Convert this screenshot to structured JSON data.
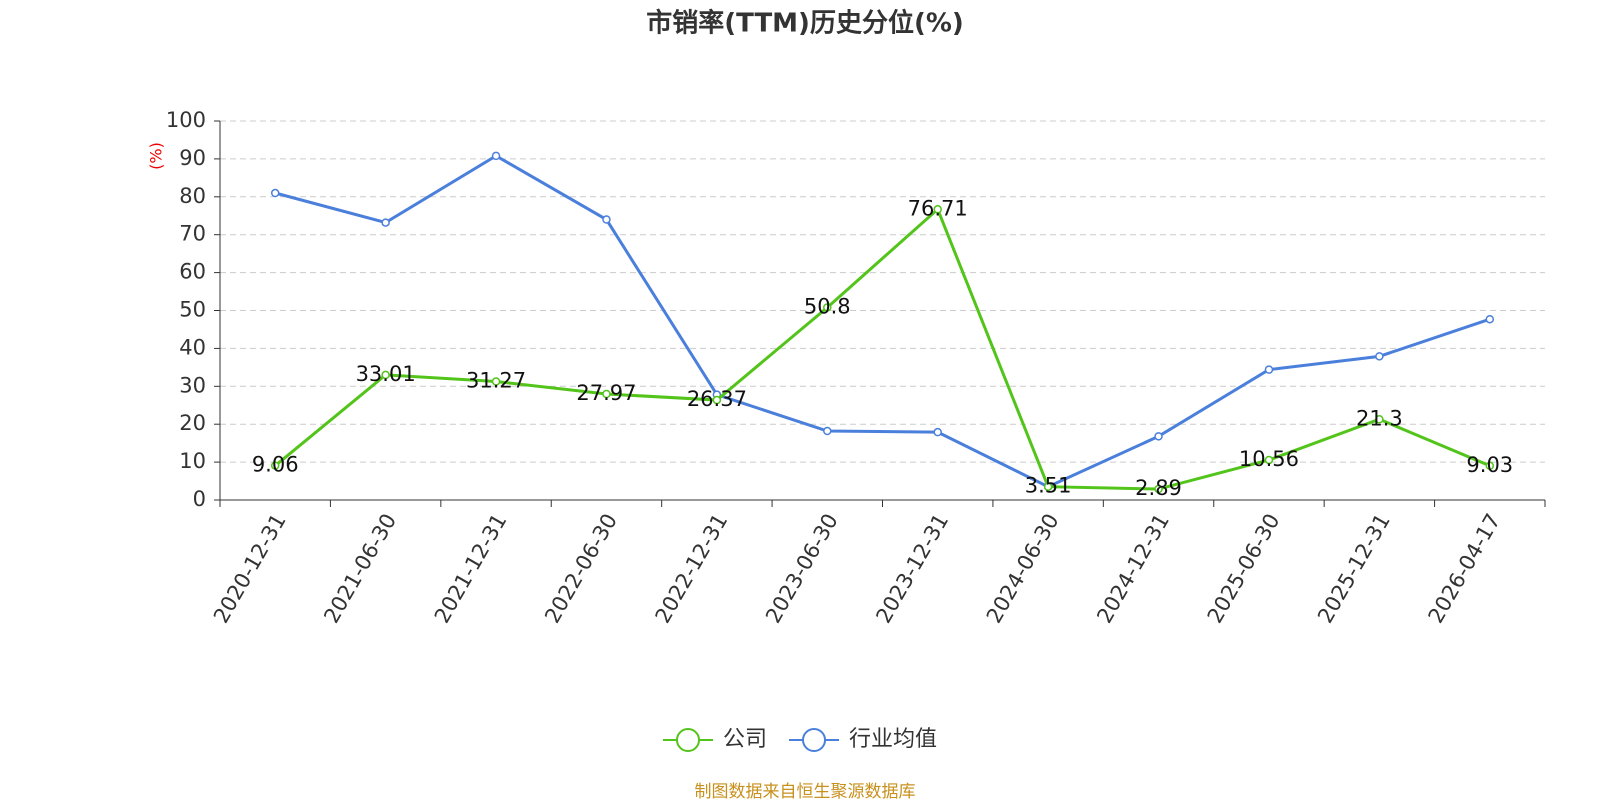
{
  "chart_data": {
    "type": "line",
    "title": "市销率(TTM)历史分位(%)",
    "y_label": "(%)",
    "categories": [
      "2020-12-31",
      "2021-06-30",
      "2021-12-31",
      "2022-06-30",
      "2022-12-31",
      "2023-06-30",
      "2023-12-31",
      "2024-06-30",
      "2024-12-31",
      "2025-06-30",
      "2025-12-31",
      "2026-04-17"
    ],
    "series": [
      {
        "name": "公司",
        "color": "#52c41a",
        "values": [
          9.06,
          33.01,
          31.27,
          27.97,
          26.37,
          50.8,
          76.71,
          3.51,
          2.89,
          10.56,
          21.3,
          9.03
        ]
      },
      {
        "name": "行业均值",
        "color": "#4a7fdc",
        "values": [
          81.0,
          73.2,
          90.8,
          74.0,
          27.8,
          18.2,
          17.9,
          3.5,
          16.8,
          34.4,
          37.9,
          47.7
        ]
      }
    ],
    "ylim": [
      0,
      100
    ],
    "yticks": [
      0,
      10,
      20,
      30,
      40,
      50,
      60,
      70,
      80,
      90,
      100
    ],
    "grid": true,
    "source": "制图数据来自恒生聚源数据库"
  }
}
